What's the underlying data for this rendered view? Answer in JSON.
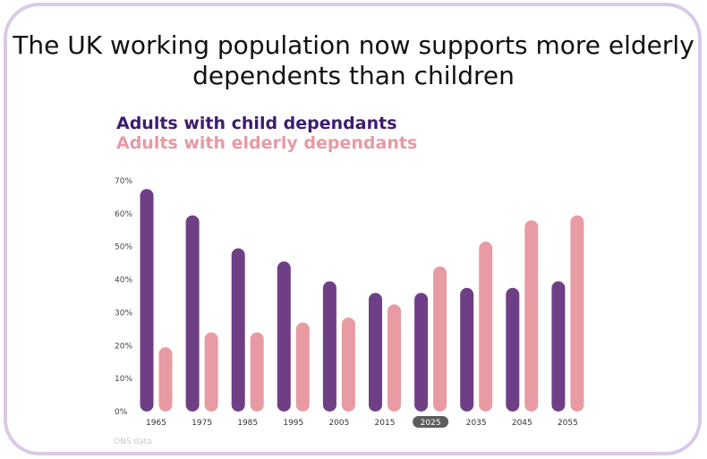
{
  "chart_data": {
    "type": "bar",
    "title": "The UK working population now supports more elderly dependents than children",
    "series": [
      {
        "name": "Adults with child dependants",
        "color": "#6f3f86",
        "values": [
          67.5,
          59.5,
          49.5,
          45.5,
          39.5,
          36.0,
          36.0,
          37.5,
          37.5,
          39.5
        ]
      },
      {
        "name": "Adults with elderly dependants",
        "color": "#e89ba2",
        "values": [
          19.5,
          24.0,
          24.0,
          27.0,
          28.5,
          32.5,
          44.0,
          51.5,
          58.0,
          59.5
        ]
      }
    ],
    "categories": [
      "1965",
      "1975",
      "1985",
      "1995",
      "2005",
      "2015",
      "2025",
      "2035",
      "2045",
      "2055"
    ],
    "highlighted_category": "2025",
    "highlight_color": "#5c5c5c",
    "yticks": [
      "0%",
      "10%",
      "20%",
      "30%",
      "40%",
      "50%",
      "60%",
      "70%"
    ],
    "ylim": [
      0,
      70
    ],
    "xlabel": "",
    "ylabel": "",
    "source": "ONS data"
  }
}
